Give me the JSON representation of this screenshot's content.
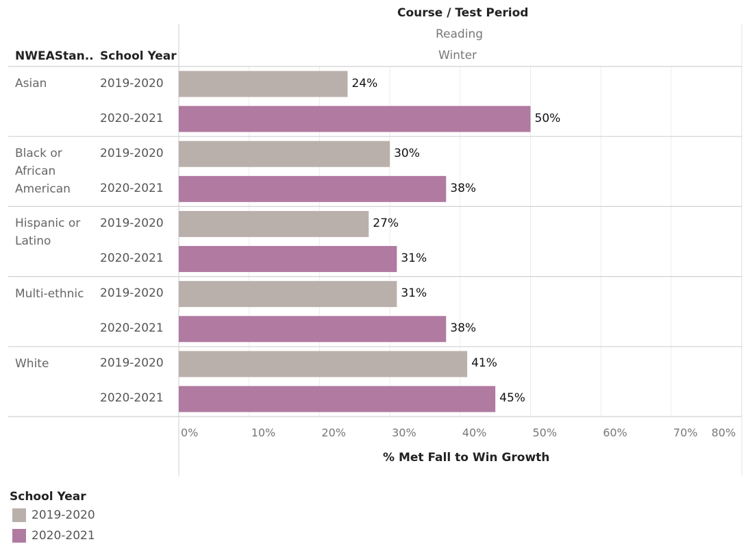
{
  "header": {
    "columns_title": "Course / Test Period",
    "course": "Reading",
    "test_period": "Winter",
    "row_header_1": "NWEAStan..",
    "row_header_2": "School Year"
  },
  "colors": {
    "2019-2020": "#bab0ab",
    "2020-2021": "#b07aa1"
  },
  "chart_data": {
    "type": "bar",
    "orientation": "horizontal",
    "categories": [
      "Asian",
      "Black or African American",
      "Hispanic or Latino",
      "Multi-ethnic",
      "White"
    ],
    "series": [
      {
        "name": "2019-2020",
        "values": [
          24,
          30,
          27,
          31,
          41
        ],
        "labels": [
          "24%",
          "30%",
          "27%",
          "31%",
          "41%"
        ]
      },
      {
        "name": "2020-2021",
        "values": [
          50,
          38,
          31,
          38,
          45
        ],
        "labels": [
          "50%",
          "38%",
          "31%",
          "38%",
          "45%"
        ]
      }
    ],
    "xlabel": "% Met Fall to Win Growth",
    "xlim": [
      0,
      80
    ],
    "xticks": [
      "0%",
      "10%",
      "20%",
      "30%",
      "40%",
      "50%",
      "60%",
      "70%",
      "80%"
    ],
    "grid": "vertical",
    "legend": {
      "title": "School Year",
      "entries": [
        "2019-2020",
        "2020-2021"
      ],
      "placement": "bottom-left"
    }
  }
}
